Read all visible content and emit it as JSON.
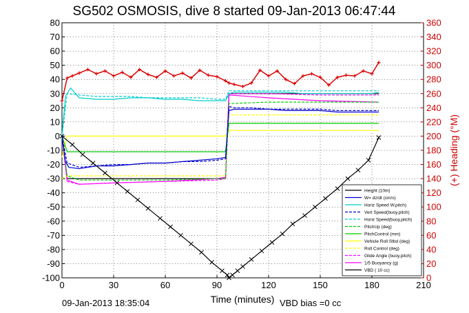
{
  "chart_data": {
    "type": "line",
    "title": "SG502 OSMOSIS, dive 8 started 09-Jan-2013 06:47:44",
    "xlabel": "Time (minutes)",
    "ylabel": "",
    "y2label": "(+) Heading (°M)",
    "xlim": [
      0,
      210
    ],
    "ylim": [
      -100,
      80
    ],
    "y2lim": [
      0,
      360
    ],
    "xticks": [
      "0",
      "30",
      "60",
      "90",
      "120",
      "150",
      "180",
      "210"
    ],
    "yticks": [
      "80",
      "70",
      "60",
      "50",
      "40",
      "30",
      "20",
      "10",
      "0",
      "-10",
      "-20",
      "-30",
      "-40",
      "-50",
      "-60",
      "-70",
      "-80",
      "-90",
      "-100"
    ],
    "y2ticks": [
      "360",
      "340",
      "320",
      "300",
      "280",
      "260",
      "240",
      "220",
      "200",
      "180",
      "160",
      "140",
      "120",
      "100",
      "80",
      "60",
      "40",
      "20",
      "0"
    ],
    "grid": true,
    "legend_position": "bottom-right",
    "footer_left": "09-Jan-2013 18:35:04",
    "footer_right": "VBD bias =0 cc",
    "series": [
      {
        "name": "Height (10m)",
        "color": "#000000",
        "style": "solid",
        "marker": "x",
        "x": [
          0,
          6,
          12,
          18,
          25,
          32,
          38,
          44,
          50,
          57,
          63,
          69,
          75,
          81,
          87,
          93,
          96,
          97,
          99,
          102,
          105,
          110,
          116,
          122,
          128,
          134,
          141,
          147,
          153,
          160,
          166,
          172,
          178,
          184
        ],
        "y": [
          0,
          -6,
          -13,
          -19,
          -26,
          -33,
          -39,
          -45,
          -51,
          -58,
          -64,
          -70,
          -76,
          -82,
          -89,
          -95,
          -98,
          -100,
          -98,
          -95,
          -92,
          -87,
          -81,
          -75,
          -69,
          -62,
          -56,
          -50,
          -44,
          -37,
          -30,
          -24,
          -17,
          -1
        ]
      },
      {
        "name": "W= dz/dt (cm/s)",
        "color": "#0000cc",
        "style": "solid",
        "x": [
          0,
          2,
          4,
          10,
          20,
          30,
          40,
          50,
          60,
          70,
          80,
          90,
          95,
          97,
          100,
          110,
          120,
          130,
          140,
          150,
          160,
          170,
          180,
          184
        ],
        "y": [
          0,
          -18,
          -22,
          -23,
          -21,
          -21,
          -20,
          -19,
          -19,
          -18,
          -17,
          -16,
          -15,
          18,
          19,
          19,
          19,
          18,
          18,
          18,
          17,
          17,
          17,
          17
        ]
      },
      {
        "name": "Horiz Speed W,pitch)",
        "color": "#00cccc",
        "style": "solid",
        "x": [
          0,
          2,
          5,
          10,
          20,
          30,
          40,
          50,
          60,
          70,
          80,
          90,
          95,
          97,
          100,
          110,
          120,
          130,
          140,
          150,
          160,
          170,
          180,
          184
        ],
        "y": [
          0,
          28,
          34,
          27,
          26,
          26,
          27,
          27,
          26,
          26,
          25,
          25,
          25,
          30,
          31,
          31,
          31,
          31,
          30,
          30,
          30,
          30,
          30,
          31
        ]
      },
      {
        "name": "Vert Speed(buoy,pitch)",
        "color": "#0000cc",
        "style": "dashed",
        "x": [
          0,
          3,
          10,
          20,
          30,
          40,
          50,
          60,
          70,
          80,
          90,
          95,
          97,
          100,
          110,
          120,
          130,
          140,
          150,
          160,
          170,
          180,
          184
        ],
        "y": [
          0,
          -19,
          -22,
          -21,
          -20,
          -20,
          -19,
          -19,
          -18,
          -18,
          -17,
          -16,
          21,
          20,
          20,
          19,
          19,
          19,
          19,
          18,
          18,
          18,
          18
        ]
      },
      {
        "name": "Horiz Speed(buoy,pitch)",
        "color": "#00cccc",
        "style": "dashed",
        "x": [
          0,
          3,
          10,
          20,
          30,
          40,
          50,
          60,
          70,
          80,
          90,
          95,
          97,
          100,
          120,
          140,
          160,
          184
        ],
        "y": [
          0,
          30,
          29,
          28,
          28,
          28,
          27,
          27,
          27,
          27,
          26,
          26,
          32,
          32,
          32,
          32,
          32,
          32
        ]
      },
      {
        "name": "PitchUp (deg)",
        "color": "#00cc00",
        "style": "dashed",
        "x": [
          0,
          3,
          10,
          30,
          60,
          90,
          95,
          97,
          120,
          150,
          184
        ],
        "y": [
          0,
          -28,
          -31,
          -31,
          -31,
          -30,
          -30,
          23,
          24,
          24,
          24
        ]
      },
      {
        "name": "PitchControl (mm)",
        "color": "#00cc00",
        "style": "solid",
        "x": [
          0,
          3,
          10,
          30,
          60,
          90,
          95,
          97,
          120,
          150,
          184
        ],
        "y": [
          0,
          -11,
          -11,
          -11,
          -11,
          -11,
          -11,
          9,
          9,
          9,
          9
        ]
      },
      {
        "name": "Vehicle Roll Stbd (deg)",
        "color": "#ffff00",
        "style": "solid",
        "x": [
          0,
          3,
          10,
          20,
          40,
          60,
          80,
          95,
          97,
          110,
          130,
          150,
          170,
          184
        ],
        "y": [
          -15,
          0,
          0,
          0,
          0,
          0,
          0,
          0,
          4,
          4,
          4,
          4,
          4,
          4
        ]
      },
      {
        "name": "Roll Control (deg)",
        "color": "#ffff00",
        "style": "dashed",
        "x": [
          0,
          3,
          20,
          40,
          60,
          80,
          95,
          97,
          120,
          150,
          184
        ],
        "y": [
          -30,
          -28,
          -28,
          -28,
          -28,
          -28,
          -28,
          15,
          15,
          15,
          15
        ]
      },
      {
        "name": "Glide Angle (buoy,pitch)",
        "color": "#ff00ff",
        "style": "dashed",
        "x": [
          0,
          3,
          10,
          30,
          60,
          90,
          95,
          97,
          120,
          150,
          184
        ],
        "y": [
          0,
          -32,
          -34,
          -33,
          -32,
          -31,
          -30,
          30,
          30,
          29,
          29
        ]
      },
      {
        "name": "1/5 Buoyancy (g)",
        "color": "#ff00ff",
        "style": "solid",
        "x": [
          0,
          3,
          10,
          30,
          60,
          90,
          95,
          97,
          120,
          150,
          184
        ],
        "y": [
          0,
          -31,
          -34,
          -33,
          -32,
          -30,
          -29,
          29,
          27,
          25,
          24
        ]
      },
      {
        "name": "VBD ( 10 cc)",
        "color": "#000000",
        "style": "solid",
        "x": [
          0,
          3,
          10,
          30,
          60,
          90,
          95,
          97,
          120,
          150,
          184
        ],
        "y": [
          0,
          -30,
          -30,
          -30,
          -30,
          -30,
          -30,
          30,
          30,
          30,
          30
        ]
      }
    ],
    "heading": {
      "name": "Heading",
      "color": "#dd0000",
      "axis": "right",
      "marker": "+",
      "x": [
        0,
        3,
        6,
        10,
        15,
        20,
        25,
        30,
        35,
        40,
        45,
        50,
        55,
        60,
        65,
        70,
        75,
        80,
        85,
        90,
        95,
        97,
        100,
        105,
        110,
        115,
        120,
        125,
        130,
        135,
        140,
        145,
        150,
        155,
        160,
        165,
        170,
        175,
        180,
        184
      ],
      "y": [
        250,
        282,
        285,
        289,
        294,
        288,
        292,
        285,
        290,
        283,
        294,
        287,
        283,
        292,
        285,
        289,
        282,
        293,
        286,
        284,
        278,
        275,
        273,
        270,
        275,
        293,
        285,
        292,
        280,
        274,
        285,
        288,
        283,
        272,
        283,
        286,
        285,
        292,
        288,
        304
      ]
    }
  }
}
